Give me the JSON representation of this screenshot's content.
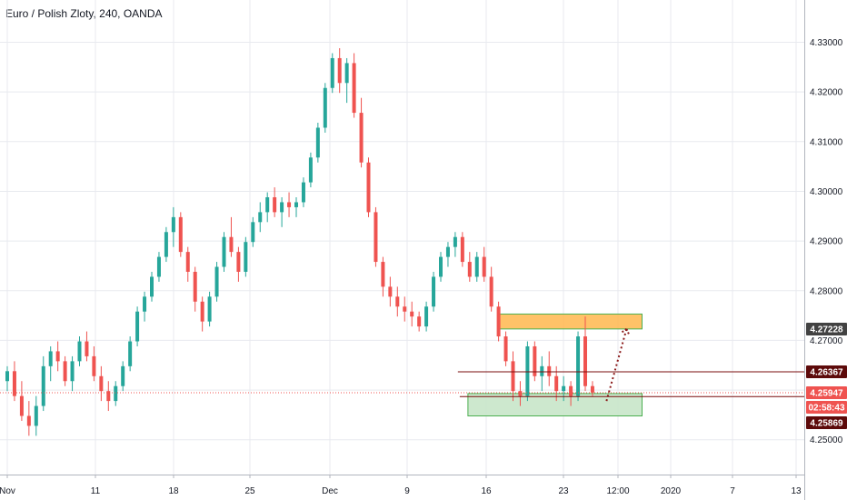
{
  "header": {
    "title": "Euro / Polish Zloty, 240, OANDA"
  },
  "colors": {
    "up": "#26a69a",
    "down": "#ef5350",
    "grid": "#e8eaef",
    "axis": "#b2b5be",
    "orange_zone": "#ffb74d",
    "green_zone": "#c8e6c9",
    "zone_border": "#4caf50",
    "support_line": "#7a0c0c",
    "arrow": "#8b1a1a",
    "tag_current": "#ef5350",
    "tag_dark": "#5d0a0a",
    "tag_gray": "#424242"
  },
  "chart_data": {
    "type": "candlestick",
    "title": "Euro / Polish Zloty, 240, OANDA",
    "ylim": [
      4.243,
      4.3385
    ],
    "y_ticks": [
      "4.25000",
      "4.26000",
      "4.27000",
      "4.28000",
      "4.29000",
      "4.30000",
      "4.31000",
      "4.32000",
      "4.33000"
    ],
    "x_ticks": [
      "Nov",
      "11",
      "18",
      "25",
      "Dec",
      "9",
      "16",
      "23",
      "12:00",
      "2020",
      "7",
      "13"
    ],
    "grid": true,
    "price_tags": [
      {
        "label": "4.27228",
        "value": 4.27228,
        "style": "gray"
      },
      {
        "label": "4.26367",
        "value": 4.26367,
        "style": "dark"
      },
      {
        "label": "4.25947",
        "value": 4.25947,
        "style": "current"
      },
      {
        "label": "02:58:43",
        "value": 4.2581,
        "style": "current"
      },
      {
        "label": "4.25869",
        "value": 4.25869,
        "style": "dark"
      }
    ],
    "current_price": 4.25947,
    "candles": [
      [
        4.2618,
        4.2648,
        4.2598,
        4.2638
      ],
      [
        4.2638,
        4.2658,
        4.2578,
        4.2588
      ],
      [
        4.2588,
        4.2618,
        4.2538,
        4.2548
      ],
      [
        4.2548,
        4.2578,
        4.2508,
        4.2528
      ],
      [
        4.2528,
        4.2588,
        4.2508,
        4.2568
      ],
      [
        4.2568,
        4.2668,
        4.2558,
        4.2648
      ],
      [
        4.2648,
        4.2688,
        4.2618,
        4.2678
      ],
      [
        4.2678,
        4.2698,
        4.2638,
        4.2658
      ],
      [
        4.2658,
        4.2668,
        4.2608,
        4.2618
      ],
      [
        4.2618,
        4.2668,
        4.2598,
        4.2658
      ],
      [
        4.2658,
        4.2708,
        4.2648,
        4.2698
      ],
      [
        4.2698,
        4.2718,
        4.2658,
        4.2668
      ],
      [
        4.2668,
        4.2688,
        4.2618,
        4.2628
      ],
      [
        4.2628,
        4.2648,
        4.2578,
        4.2598
      ],
      [
        4.2598,
        4.2618,
        4.2558,
        4.2578
      ],
      [
        4.2578,
        4.2618,
        4.2568,
        4.2608
      ],
      [
        4.2608,
        4.2658,
        4.2598,
        4.2648
      ],
      [
        4.2648,
        4.2708,
        4.2638,
        4.2698
      ],
      [
        4.2698,
        4.2768,
        4.2688,
        4.2758
      ],
      [
        4.2758,
        4.2798,
        4.2738,
        4.2788
      ],
      [
        4.2788,
        4.2838,
        4.2778,
        4.2828
      ],
      [
        4.2828,
        4.2878,
        4.2818,
        4.2868
      ],
      [
        4.2868,
        4.2928,
        4.2858,
        4.2918
      ],
      [
        4.2918,
        4.2968,
        4.2888,
        4.2948
      ],
      [
        4.2948,
        4.2958,
        4.2868,
        4.2878
      ],
      [
        4.2878,
        4.2888,
        4.2818,
        4.2838
      ],
      [
        4.2838,
        4.2848,
        4.2758,
        4.2778
      ],
      [
        4.2778,
        4.2788,
        4.2718,
        4.2738
      ],
      [
        4.2738,
        4.2798,
        4.2728,
        4.2788
      ],
      [
        4.2788,
        4.2858,
        4.2778,
        4.2848
      ],
      [
        4.2848,
        4.2918,
        4.2838,
        4.2908
      ],
      [
        4.2908,
        4.2948,
        4.2868,
        4.2878
      ],
      [
        4.2878,
        4.2888,
        4.2818,
        4.2838
      ],
      [
        4.2838,
        4.2908,
        4.2828,
        4.2898
      ],
      [
        4.2898,
        4.2948,
        4.2888,
        4.2938
      ],
      [
        4.2938,
        4.2978,
        4.2918,
        4.2958
      ],
      [
        4.2958,
        4.2998,
        4.2938,
        4.2988
      ],
      [
        4.2988,
        4.3008,
        4.2948,
        4.2958
      ],
      [
        4.2958,
        4.2988,
        4.2928,
        4.2978
      ],
      [
        4.2978,
        4.2998,
        4.2948,
        4.2968
      ],
      [
        4.2968,
        4.2988,
        4.2948,
        4.2978
      ],
      [
        4.2978,
        4.3028,
        4.2968,
        4.3018
      ],
      [
        4.3018,
        4.3078,
        4.3008,
        4.3068
      ],
      [
        4.3068,
        4.3138,
        4.3058,
        4.3128
      ],
      [
        4.3128,
        4.3218,
        4.3118,
        4.3208
      ],
      [
        4.3208,
        4.3278,
        4.3198,
        4.3268
      ],
      [
        4.3268,
        4.3288,
        4.3198,
        4.3218
      ],
      [
        4.3218,
        4.3268,
        4.3178,
        4.3258
      ],
      [
        4.3258,
        4.3278,
        4.3148,
        4.3158
      ],
      [
        4.3158,
        4.3188,
        4.3048,
        4.3058
      ],
      [
        4.3058,
        4.3068,
        4.2948,
        4.2958
      ],
      [
        4.2958,
        4.2968,
        4.2848,
        4.2858
      ],
      [
        4.2858,
        4.2868,
        4.2788,
        4.2808
      ],
      [
        4.2808,
        4.2828,
        4.2768,
        4.2788
      ],
      [
        4.2788,
        4.2808,
        4.2748,
        4.2768
      ],
      [
        4.2768,
        4.2788,
        4.2738,
        4.2758
      ],
      [
        4.2758,
        4.2778,
        4.2728,
        4.2748
      ],
      [
        4.2748,
        4.2758,
        4.2718,
        4.2728
      ],
      [
        4.2728,
        4.2778,
        4.2718,
        4.2768
      ],
      [
        4.2768,
        4.2838,
        4.2758,
        4.2828
      ],
      [
        4.2828,
        4.2878,
        4.2818,
        4.2868
      ],
      [
        4.2868,
        4.2898,
        4.2848,
        4.2888
      ],
      [
        4.2888,
        4.2918,
        4.2868,
        4.2908
      ],
      [
        4.2908,
        4.2918,
        4.2848,
        4.2858
      ],
      [
        4.2858,
        4.2878,
        4.2818,
        4.2828
      ],
      [
        4.2828,
        4.2878,
        4.2818,
        4.2868
      ],
      [
        4.2868,
        4.2888,
        4.2818,
        4.2828
      ],
      [
        4.2828,
        4.2848,
        4.2758,
        4.2768
      ],
      [
        4.2768,
        4.2778,
        4.2698,
        4.2708
      ],
      [
        4.2708,
        4.2718,
        4.2648,
        4.2658
      ],
      [
        4.2658,
        4.2678,
        4.2578,
        4.2598
      ],
      [
        4.2598,
        4.2618,
        4.2568,
        4.2588
      ],
      [
        4.2588,
        4.2698,
        4.2578,
        4.2688
      ],
      [
        4.2688,
        4.2698,
        4.2618,
        4.2628
      ],
      [
        4.2628,
        4.2668,
        4.2598,
        4.2648
      ],
      [
        4.2648,
        4.2678,
        4.2608,
        4.2628
      ],
      [
        4.2628,
        4.2648,
        4.2578,
        4.2598
      ],
      [
        4.2598,
        4.2628,
        4.2578,
        4.2608
      ],
      [
        4.2608,
        4.2618,
        4.2568,
        4.2588
      ],
      [
        4.2588,
        4.2718,
        4.2578,
        4.2708
      ],
      [
        4.2708,
        4.2748,
        4.2598,
        4.2608
      ],
      [
        4.2608,
        4.2618,
        4.2588,
        4.2595
      ]
    ],
    "annotations": [
      {
        "kind": "zone",
        "color": "orange",
        "x_from": 0.6205,
        "x_to": 0.7983,
        "y_top": 4.2753,
        "y_bottom": 4.2723
      },
      {
        "kind": "zone",
        "color": "green",
        "x_from": 0.5818,
        "x_to": 0.7983,
        "y_top": 4.2593,
        "y_bottom": 4.2548
      },
      {
        "kind": "hline",
        "value": 4.26367,
        "x_from": 0.5693,
        "x_to": 1.0
      },
      {
        "kind": "hline",
        "value": 4.25869,
        "x_from": 0.5716,
        "x_to": 1.0
      },
      {
        "kind": "arrow",
        "x_from": 0.7541,
        "y_from": 4.2578,
        "x_to": 0.779,
        "y_to": 4.2723
      }
    ]
  }
}
